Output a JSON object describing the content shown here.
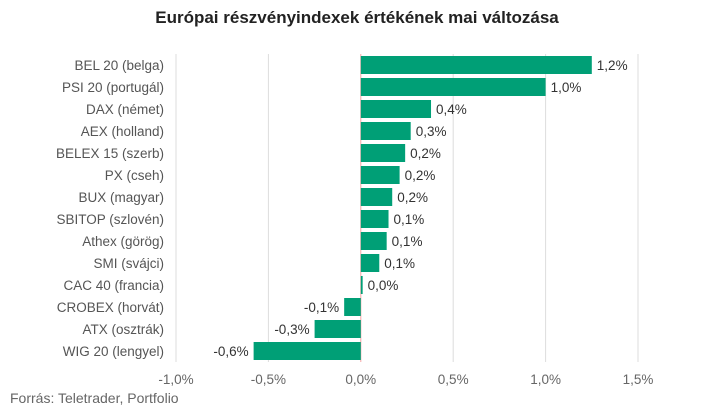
{
  "chart_data": {
    "type": "bar",
    "orientation": "horizontal",
    "title": "Európai részvényindexek értékének mai változása",
    "categories": [
      "BEL 20 (belga)",
      "PSI 20 (portugál)",
      "DAX (német)",
      "AEX (holland)",
      "BELEX 15 (szerb)",
      "PX (cseh)",
      "BUX (magyar)",
      "SBITOP (szlovén)",
      "Athex (görög)",
      "SMI (svájci)",
      "CAC 40 (francia)",
      "CROBEX (horvát)",
      "ATX (osztrák)",
      "WIG 20 (lengyel)"
    ],
    "values": [
      1.25,
      1.0,
      0.38,
      0.27,
      0.24,
      0.21,
      0.17,
      0.15,
      0.14,
      0.1,
      0.01,
      -0.09,
      -0.25,
      -0.58
    ],
    "value_labels": [
      "1,2%",
      "1,0%",
      "0,4%",
      "0,3%",
      "0,2%",
      "0,2%",
      "0,2%",
      "0,1%",
      "0,1%",
      "0,1%",
      "0,0%",
      "-0,1%",
      "-0,3%",
      "-0,6%"
    ],
    "xlim": [
      -1.0,
      1.5
    ],
    "xticks": [
      -1.0,
      -0.5,
      0.0,
      0.5,
      1.0,
      1.5
    ],
    "xtick_labels": [
      "-1,0%",
      "-0,5%",
      "0,0%",
      "0,5%",
      "1,0%",
      "1,5%"
    ],
    "grid": "vertical",
    "colors": {
      "bar": "#009f76",
      "zero_line": "#f4a6a6",
      "grid": "#dddddd"
    }
  },
  "source": "Forrás: Teletrader, Portfolio"
}
